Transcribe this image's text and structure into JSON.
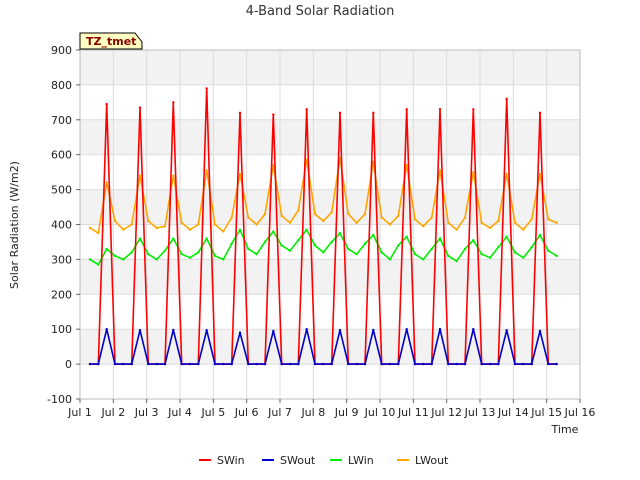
{
  "chart_data": {
    "type": "line",
    "title": "4-Band Solar Radiation",
    "xlabel": "Time",
    "ylabel": "Solar Radiation (W/m2)",
    "tag": "TZ_tmet",
    "xlim": [
      1,
      16
    ],
    "ylim": [
      -100,
      900
    ],
    "x_ticks": [
      {
        "value": 1,
        "label": "Jul 1"
      },
      {
        "value": 2,
        "label": "Jul 2"
      },
      {
        "value": 3,
        "label": "Jul 3"
      },
      {
        "value": 4,
        "label": "Jul 4"
      },
      {
        "value": 5,
        "label": "Jul 5"
      },
      {
        "value": 6,
        "label": "Jul 6"
      },
      {
        "value": 7,
        "label": "Jul 7"
      },
      {
        "value": 8,
        "label": "Jul 8"
      },
      {
        "value": 9,
        "label": "Jul 9"
      },
      {
        "value": 10,
        "label": "Jul 10"
      },
      {
        "value": 11,
        "label": "Jul 11"
      },
      {
        "value": 12,
        "label": "Jul 12"
      },
      {
        "value": 13,
        "label": "Jul 13"
      },
      {
        "value": 14,
        "label": "Jul 14"
      },
      {
        "value": 15,
        "label": "Jul 15"
      },
      {
        "value": 16,
        "label": "Jul 16"
      }
    ],
    "y_ticks": [
      -100,
      0,
      100,
      200,
      300,
      400,
      500,
      600,
      700,
      800,
      900
    ],
    "grid": true,
    "legend_position": "bottom-center",
    "series": [
      {
        "name": "SWin",
        "color": "#ff0000",
        "x": [
          1.3,
          1.55,
          1.8,
          2.05,
          2.3,
          2.55,
          2.8,
          3.05,
          3.3,
          3.55,
          3.8,
          4.05,
          4.3,
          4.55,
          4.8,
          5.05,
          5.3,
          5.55,
          5.8,
          6.05,
          6.3,
          6.55,
          6.8,
          7.05,
          7.3,
          7.55,
          7.8,
          8.05,
          8.3,
          8.55,
          8.8,
          9.05,
          9.3,
          9.55,
          9.8,
          10.05,
          10.3,
          10.55,
          10.8,
          11.05,
          11.3,
          11.55,
          11.8,
          12.05,
          12.3,
          12.55,
          12.8,
          13.05,
          13.3,
          13.55,
          13.8,
          14.05,
          14.3,
          14.55,
          14.8,
          15.05,
          15.3
        ],
        "y": [
          0,
          0,
          745,
          0,
          0,
          0,
          735,
          0,
          0,
          0,
          750,
          0,
          0,
          0,
          790,
          0,
          0,
          0,
          720,
          0,
          0,
          0,
          715,
          0,
          0,
          0,
          730,
          0,
          0,
          0,
          720,
          0,
          0,
          0,
          720,
          0,
          0,
          0,
          730,
          0,
          0,
          0,
          730,
          0,
          0,
          0,
          730,
          0,
          0,
          0,
          760,
          0,
          0,
          0,
          720,
          0,
          0
        ]
      },
      {
        "name": "SWout",
        "color": "#0000cc",
        "x": [
          1.3,
          1.55,
          1.8,
          2.05,
          2.3,
          2.55,
          2.8,
          3.05,
          3.3,
          3.55,
          3.8,
          4.05,
          4.3,
          4.55,
          4.8,
          5.05,
          5.3,
          5.55,
          5.8,
          6.05,
          6.3,
          6.55,
          6.8,
          7.05,
          7.3,
          7.55,
          7.8,
          8.05,
          8.3,
          8.55,
          8.8,
          9.05,
          9.3,
          9.55,
          9.8,
          10.05,
          10.3,
          10.55,
          10.8,
          11.05,
          11.3,
          11.55,
          11.8,
          12.05,
          12.3,
          12.55,
          12.8,
          13.05,
          13.3,
          13.55,
          13.8,
          14.05,
          14.3,
          14.55,
          14.8,
          15.05,
          15.3
        ],
        "y": [
          0,
          0,
          100,
          0,
          0,
          0,
          97,
          0,
          0,
          0,
          98,
          0,
          0,
          0,
          97,
          0,
          0,
          0,
          90,
          0,
          0,
          0,
          95,
          0,
          0,
          0,
          100,
          0,
          0,
          0,
          97,
          0,
          0,
          0,
          98,
          0,
          0,
          0,
          100,
          0,
          0,
          0,
          100,
          0,
          0,
          0,
          100,
          0,
          0,
          0,
          97,
          0,
          0,
          0,
          95,
          0,
          0
        ]
      },
      {
        "name": "LWin",
        "color": "#00ee00",
        "x": [
          1.3,
          1.55,
          1.8,
          2.05,
          2.3,
          2.55,
          2.8,
          3.05,
          3.3,
          3.55,
          3.8,
          4.05,
          4.3,
          4.55,
          4.8,
          5.05,
          5.3,
          5.55,
          5.8,
          6.05,
          6.3,
          6.55,
          6.8,
          7.05,
          7.3,
          7.55,
          7.8,
          8.05,
          8.3,
          8.55,
          8.8,
          9.05,
          9.3,
          9.55,
          9.8,
          10.05,
          10.3,
          10.55,
          10.8,
          11.05,
          11.3,
          11.55,
          11.8,
          12.05,
          12.3,
          12.55,
          12.8,
          13.05,
          13.3,
          13.55,
          13.8,
          14.05,
          14.3,
          14.55,
          14.8,
          15.05,
          15.3
        ],
        "y": [
          300,
          285,
          330,
          310,
          300,
          320,
          360,
          315,
          300,
          325,
          360,
          315,
          305,
          320,
          360,
          310,
          300,
          345,
          385,
          330,
          315,
          350,
          380,
          340,
          325,
          355,
          385,
          340,
          320,
          350,
          375,
          330,
          315,
          345,
          370,
          320,
          300,
          340,
          365,
          315,
          300,
          330,
          360,
          310,
          295,
          330,
          355,
          315,
          305,
          335,
          365,
          320,
          305,
          335,
          370,
          325,
          310
        ]
      },
      {
        "name": "LWout",
        "color": "#ffa500",
        "x": [
          1.3,
          1.55,
          1.8,
          2.05,
          2.3,
          2.55,
          2.8,
          3.05,
          3.3,
          3.55,
          3.8,
          4.05,
          4.3,
          4.55,
          4.8,
          5.05,
          5.3,
          5.55,
          5.8,
          6.05,
          6.3,
          6.55,
          6.8,
          7.05,
          7.3,
          7.55,
          7.8,
          8.05,
          8.3,
          8.55,
          8.8,
          9.05,
          9.3,
          9.55,
          9.8,
          10.05,
          10.3,
          10.55,
          10.8,
          11.05,
          11.3,
          11.55,
          11.8,
          12.05,
          12.3,
          12.55,
          12.8,
          13.05,
          13.3,
          13.55,
          13.8,
          14.05,
          14.3,
          14.55,
          14.8,
          15.05,
          15.3
        ],
        "y": [
          390,
          375,
          520,
          410,
          385,
          400,
          540,
          410,
          390,
          395,
          540,
          405,
          385,
          400,
          555,
          400,
          380,
          420,
          545,
          420,
          400,
          430,
          570,
          425,
          405,
          440,
          585,
          430,
          410,
          435,
          590,
          430,
          405,
          430,
          580,
          420,
          400,
          425,
          570,
          415,
          395,
          420,
          555,
          405,
          385,
          420,
          550,
          405,
          390,
          410,
          545,
          405,
          385,
          415,
          545,
          415,
          405
        ]
      }
    ]
  }
}
